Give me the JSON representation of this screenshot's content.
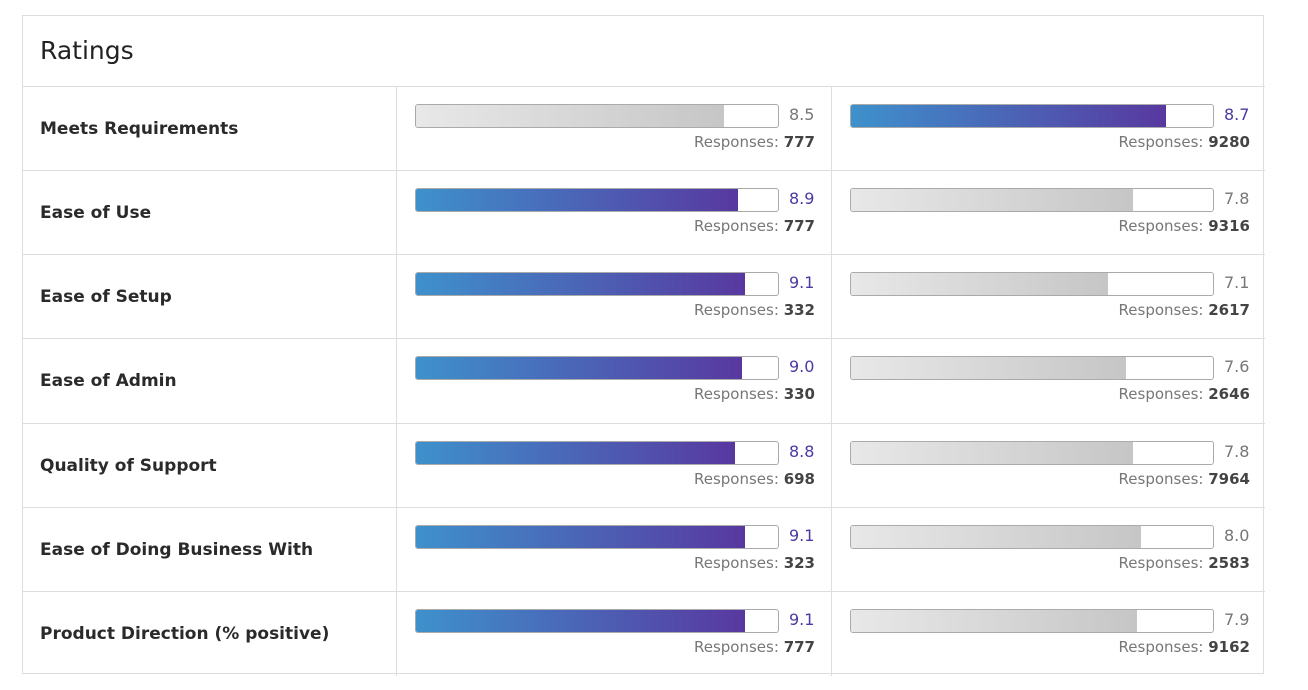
{
  "title": "Ratings",
  "xlim": [
    0,
    10
  ],
  "responses_label": "Responses:",
  "rows": [
    {
      "label": "Meets Requirements",
      "products": [
        {
          "score": 8.5,
          "responses": 777
        },
        {
          "score": 8.7,
          "responses": 9280
        }
      ]
    },
    {
      "label": "Ease of Use",
      "products": [
        {
          "score": 8.9,
          "responses": 777
        },
        {
          "score": 7.8,
          "responses": 9316
        }
      ]
    },
    {
      "label": "Ease of Setup",
      "products": [
        {
          "score": 9.1,
          "responses": 332
        },
        {
          "score": 7.1,
          "responses": 2617
        }
      ]
    },
    {
      "label": "Ease of Admin",
      "products": [
        {
          "score": 9,
          "score_label": "9.0",
          "responses": 330
        },
        {
          "score": 7.6,
          "responses": 2646
        }
      ]
    },
    {
      "label": "Quality of Support",
      "products": [
        {
          "score": 8.8,
          "responses": 698
        },
        {
          "score": 7.8,
          "responses": 7964
        }
      ]
    },
    {
      "label": "Ease of Doing Business With",
      "products": [
        {
          "score": 9.1,
          "responses": 323
        },
        {
          "score": 8,
          "score_label": "8.0",
          "responses": 2583
        }
      ]
    },
    {
      "label": "Product Direction (% positive)",
      "products": [
        {
          "score": 9.1,
          "responses": 777
        },
        {
          "score": 7.9,
          "responses": 9162
        }
      ]
    }
  ]
}
